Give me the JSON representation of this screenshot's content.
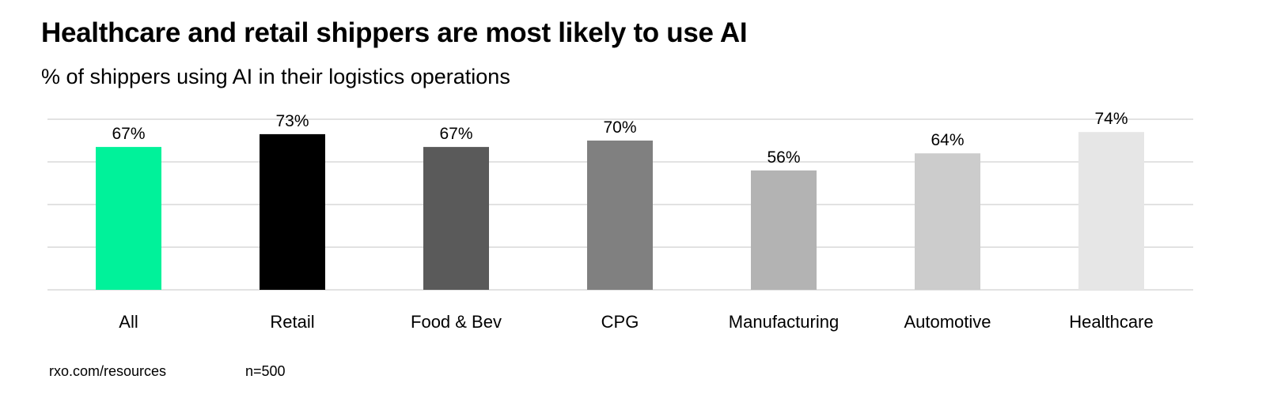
{
  "chart_data": {
    "type": "bar",
    "title": "Healthcare and retail shippers are most likely to use AI",
    "subtitle": "% of shippers using AI in their logistics operations",
    "categories": [
      "All",
      "Retail",
      "Food & Bev",
      "CPG",
      "Manufacturing",
      "Automotive",
      "Healthcare"
    ],
    "values": [
      67,
      73,
      67,
      70,
      56,
      64,
      74
    ],
    "value_labels": [
      "67%",
      "73%",
      "67%",
      "70%",
      "56%",
      "64%",
      "74%"
    ],
    "colors": [
      "#00F29A",
      "#000000",
      "#5A5A5A",
      "#808080",
      "#B3B3B3",
      "#CCCCCC",
      "#E6E6E6"
    ],
    "ylim": [
      0,
      80
    ],
    "gridlines": [
      0,
      20,
      40,
      60,
      80
    ],
    "grid": true,
    "xlabel": "",
    "ylabel": ""
  },
  "footer": {
    "source": "rxo.com/resources",
    "sample": "n=500"
  }
}
